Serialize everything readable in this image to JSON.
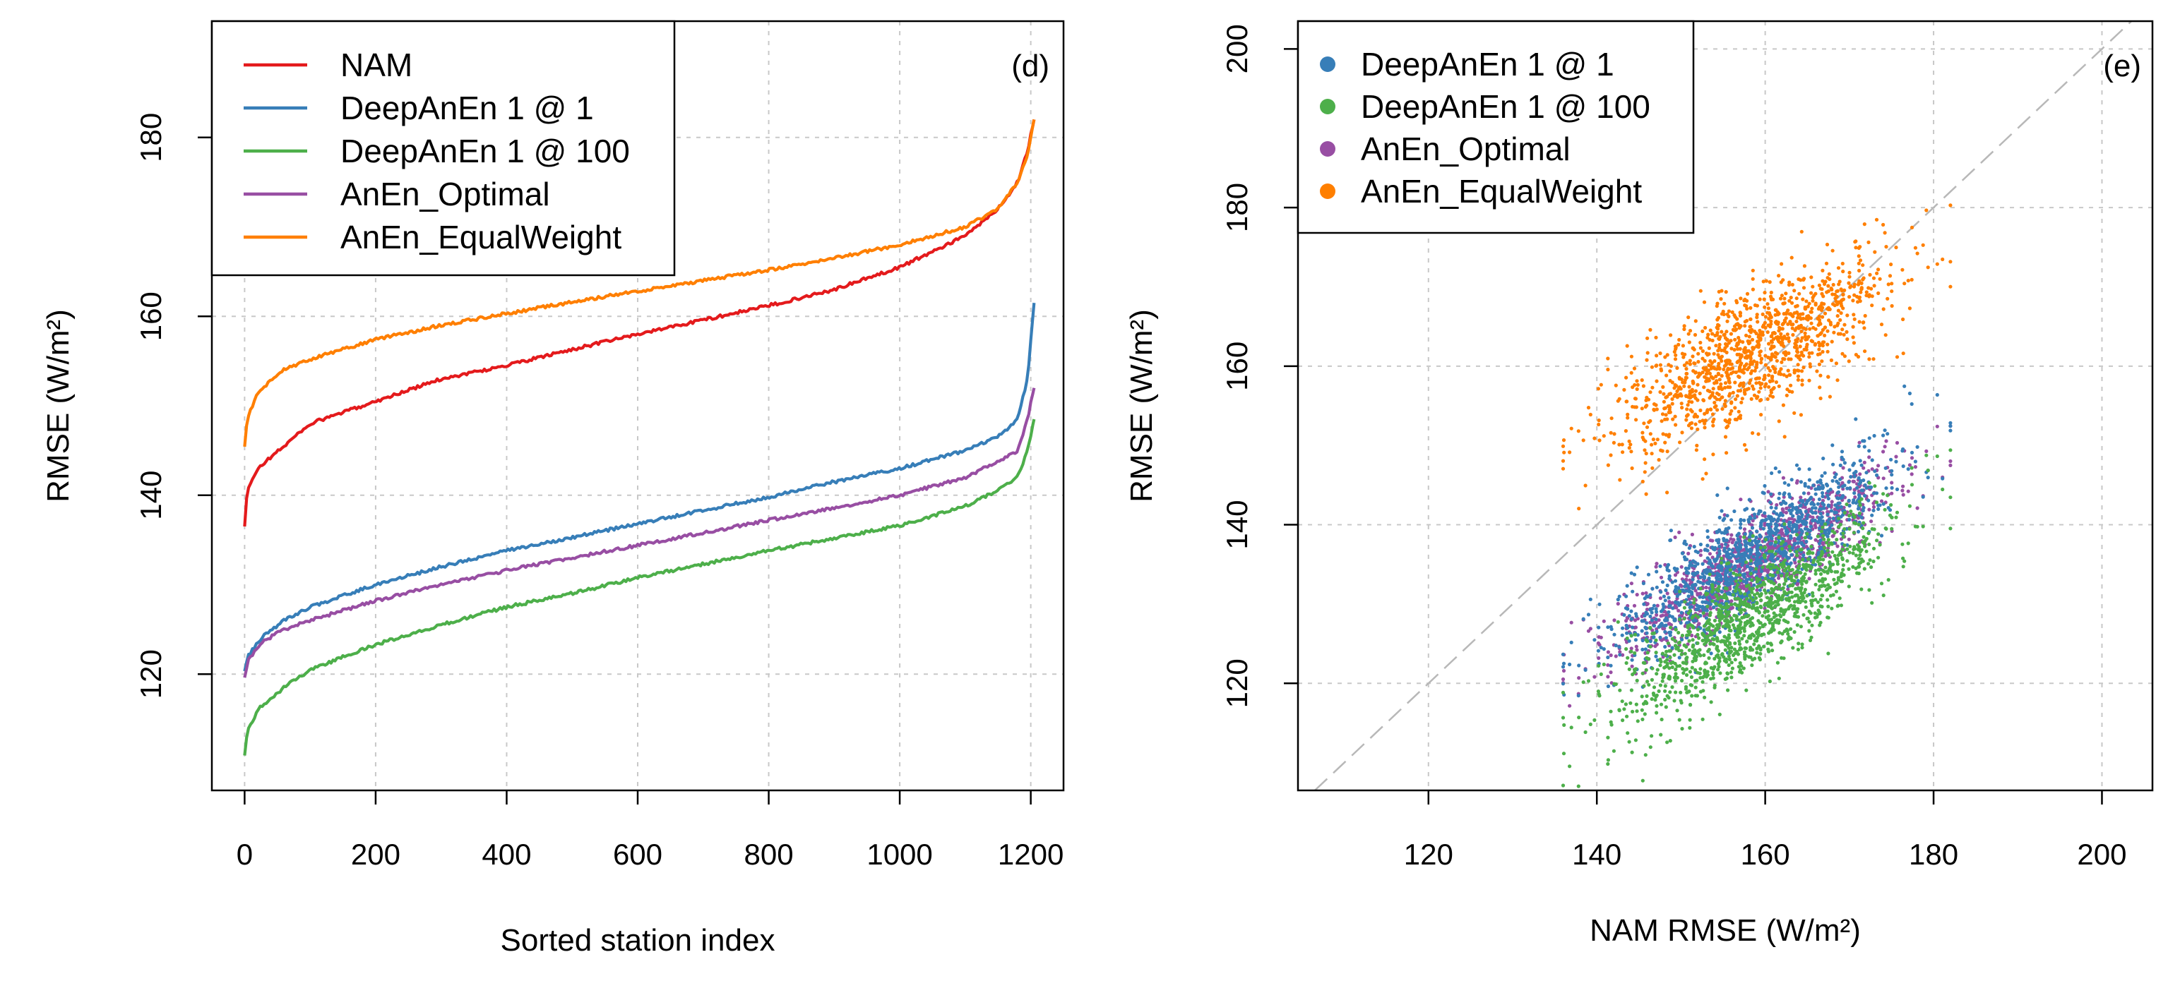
{
  "chart_data": [
    {
      "type": "line",
      "panel_label": "(d)",
      "xlabel": "Sorted station index",
      "ylabel": "RMSE (W/m²)",
      "xlim": [
        -50,
        1250
      ],
      "ylim": [
        107,
        193
      ],
      "xticks": [
        0,
        200,
        400,
        600,
        800,
        1000,
        1200
      ],
      "yticks": [
        120,
        140,
        160,
        180
      ],
      "legend_position": "top-left",
      "n_points": 1206,
      "series": [
        {
          "name": "NAM",
          "color": "#e41a1c",
          "knots": [
            [
              0,
              136.5
            ],
            [
              4,
              140.5
            ],
            [
              20,
              143.0
            ],
            [
              60,
              145.5
            ],
            [
              100,
              148.0
            ],
            [
              200,
              150.5
            ],
            [
              300,
              153.0
            ],
            [
              400,
              154.5
            ],
            [
              500,
              156.3
            ],
            [
              600,
              158.0
            ],
            [
              700,
              159.6
            ],
            [
              800,
              161.2
            ],
            [
              900,
              163.0
            ],
            [
              1000,
              165.5
            ],
            [
              1100,
              169.0
            ],
            [
              1150,
              172.0
            ],
            [
              1180,
              175.0
            ],
            [
              1195,
              178.5
            ],
            [
              1205,
              182.0
            ]
          ]
        },
        {
          "name": "DeepAnEn 1 @ 1",
          "color": "#377eb8",
          "knots": [
            [
              0,
              120.5
            ],
            [
              5,
              122.0
            ],
            [
              25,
              124.0
            ],
            [
              60,
              126.0
            ],
            [
              100,
              127.5
            ],
            [
              200,
              130.0
            ],
            [
              300,
              132.0
            ],
            [
              400,
              133.8
            ],
            [
              500,
              135.3
            ],
            [
              600,
              136.8
            ],
            [
              700,
              138.3
            ],
            [
              800,
              139.8
            ],
            [
              900,
              141.5
            ],
            [
              1000,
              143.0
            ],
            [
              1100,
              145.0
            ],
            [
              1150,
              146.5
            ],
            [
              1180,
              148.5
            ],
            [
              1195,
              153.0
            ],
            [
              1205,
              161.5
            ]
          ]
        },
        {
          "name": "DeepAnEn 1 @ 100",
          "color": "#4daf4a",
          "knots": [
            [
              0,
              111.0
            ],
            [
              4,
              113.5
            ],
            [
              20,
              116.0
            ],
            [
              60,
              118.5
            ],
            [
              100,
              120.5
            ],
            [
              200,
              123.3
            ],
            [
              300,
              125.5
            ],
            [
              400,
              127.5
            ],
            [
              500,
              129.0
            ],
            [
              600,
              130.8
            ],
            [
              700,
              132.3
            ],
            [
              800,
              133.8
            ],
            [
              900,
              135.2
            ],
            [
              1000,
              136.6
            ],
            [
              1100,
              138.8
            ],
            [
              1150,
              140.5
            ],
            [
              1180,
              142.0
            ],
            [
              1195,
              145.0
            ],
            [
              1205,
              148.5
            ]
          ]
        },
        {
          "name": "AnEn_Optimal",
          "color": "#984ea3",
          "knots": [
            [
              0,
              119.5
            ],
            [
              5,
              121.5
            ],
            [
              25,
              123.5
            ],
            [
              60,
              125.0
            ],
            [
              100,
              126.0
            ],
            [
              200,
              128.2
            ],
            [
              300,
              130.0
            ],
            [
              400,
              131.6
            ],
            [
              500,
              133.0
            ],
            [
              600,
              134.4
            ],
            [
              700,
              135.8
            ],
            [
              800,
              137.2
            ],
            [
              900,
              138.6
            ],
            [
              1000,
              140.0
            ],
            [
              1100,
              142.0
            ],
            [
              1150,
              143.8
            ],
            [
              1180,
              145.0
            ],
            [
              1195,
              148.5
            ],
            [
              1205,
              152.0
            ]
          ]
        },
        {
          "name": "AnEn_EqualWeight",
          "color": "#ff7f00",
          "knots": [
            [
              0,
              145.5
            ],
            [
              4,
              148.5
            ],
            [
              20,
              151.5
            ],
            [
              60,
              154.0
            ],
            [
              100,
              155.2
            ],
            [
              200,
              157.4
            ],
            [
              300,
              159.0
            ],
            [
              400,
              160.3
            ],
            [
              500,
              161.6
            ],
            [
              600,
              162.8
            ],
            [
              700,
              164.0
            ],
            [
              800,
              165.2
            ],
            [
              900,
              166.5
            ],
            [
              1000,
              168.0
            ],
            [
              1100,
              170.0
            ],
            [
              1150,
              172.0
            ],
            [
              1180,
              175.0
            ],
            [
              1195,
              178.0
            ],
            [
              1205,
              182.0
            ]
          ]
        }
      ]
    },
    {
      "type": "scatter",
      "panel_label": "(e)",
      "xlabel": "NAM RMSE (W/m²)",
      "ylabel": "RMSE (W/m²)",
      "xlim": [
        104.5,
        206
      ],
      "ylim": [
        106.5,
        203.5
      ],
      "xticks": [
        120,
        140,
        160,
        180,
        200
      ],
      "yticks": [
        120,
        140,
        160,
        180,
        200
      ],
      "reference_line": "y = x",
      "legend_position": "top-left",
      "series": [
        {
          "name": "DeepAnEn 1 @ 1",
          "color": "#377eb8",
          "n_points": 1200,
          "x_mean": 158.5,
          "x_sd": 8.0,
          "y_intercept": 38.0,
          "y_slope": 0.62,
          "y_noise_sd": 3.3
        },
        {
          "name": "DeepAnEn 1 @ 100",
          "color": "#4daf4a",
          "n_points": 1200,
          "x_mean": 158.5,
          "x_sd": 8.0,
          "y_intercept": 24.0,
          "y_slope": 0.66,
          "y_noise_sd": 3.6
        },
        {
          "name": "AnEn_Optimal",
          "color": "#984ea3",
          "n_points": 1200,
          "x_mean": 158.5,
          "x_sd": 8.0,
          "y_intercept": 40.0,
          "y_slope": 0.6,
          "y_noise_sd": 2.9
        },
        {
          "name": "AnEn_EqualWeight",
          "color": "#ff7f00",
          "n_points": 1200,
          "x_mean": 158.5,
          "x_sd": 8.0,
          "y_intercept": 76.0,
          "y_slope": 0.54,
          "y_noise_sd": 4.2
        }
      ]
    }
  ]
}
